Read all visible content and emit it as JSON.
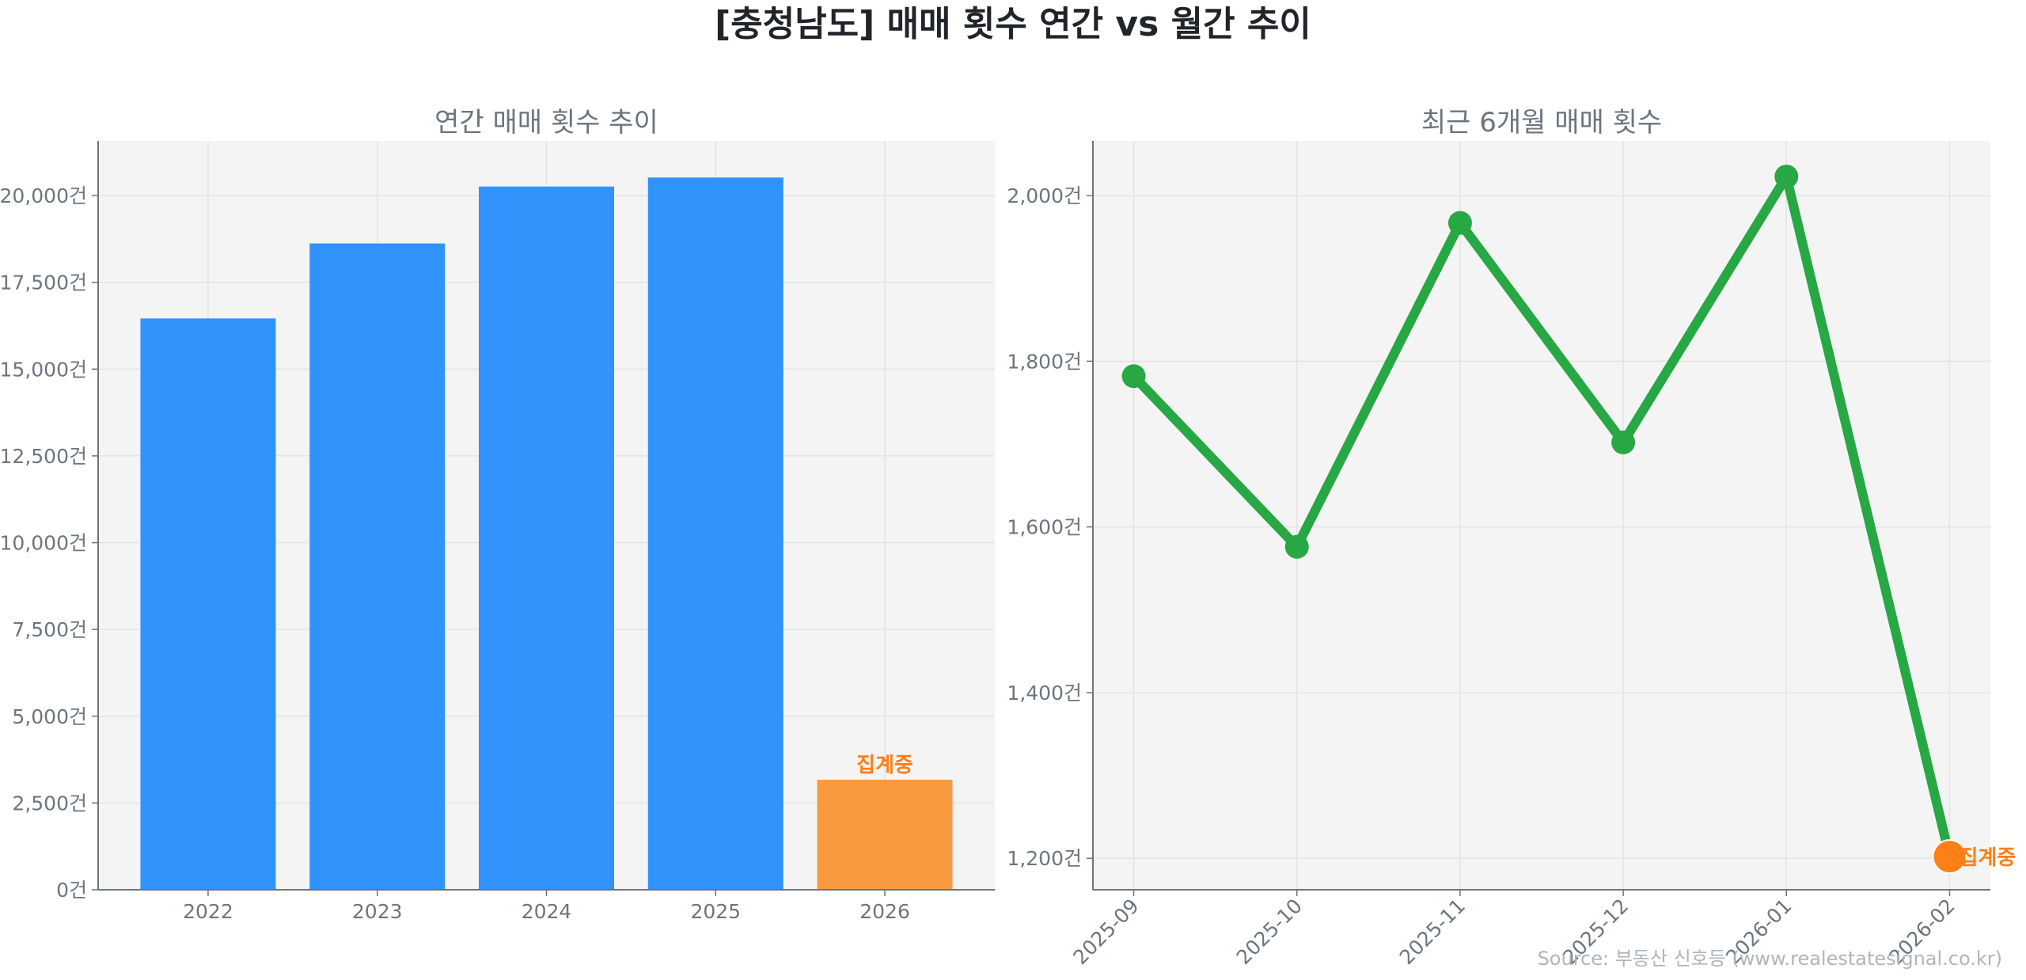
{
  "title": "[충청남도] 매매 횟수 연간 vs 월간 추이",
  "source": "Source: 부동산 신호등 (www.realestatesignal.co.kr)",
  "colors": {
    "bar": "#3093fb",
    "bar_partial": "#f99a40",
    "line": "#28a745",
    "partial_marker": "#fd7f17",
    "annotation": "#fd7f17",
    "axes_bg": "#f4f4f4",
    "text": "#6c757d"
  },
  "chart_data": [
    {
      "type": "bar",
      "title": "연간 매매 횟수 추이",
      "categories": [
        "2022",
        "2023",
        "2024",
        "2025",
        "2026"
      ],
      "values": [
        16460,
        18620,
        20260,
        20520,
        3170
      ],
      "partial_index": 4,
      "annotation": "집계중",
      "ylim": [
        0,
        21575
      ],
      "yticks": [
        0,
        2500,
        5000,
        7500,
        10000,
        12500,
        15000,
        17500,
        20000
      ],
      "ytick_labels": [
        "0건",
        "2,500건",
        "5,000건",
        "7,500건",
        "10,000건",
        "12,500건",
        "15,000건",
        "17,500건",
        "20,000건"
      ],
      "grid": true
    },
    {
      "type": "line",
      "title": "최근 6개월 매매 횟수",
      "categories": [
        "2025-09",
        "2025-10",
        "2025-11",
        "2025-12",
        "2026-01",
        "2026-02"
      ],
      "values": [
        1782,
        1576,
        1967,
        1702,
        2023,
        1202
      ],
      "partial_index": 5,
      "annotation": "집계중",
      "ylim": [
        1162,
        2066
      ],
      "yticks": [
        1200,
        1400,
        1600,
        1800,
        2000
      ],
      "ytick_labels": [
        "1,200건",
        "1,400건",
        "1,600건",
        "1,800건",
        "2,000건"
      ],
      "grid": true
    }
  ]
}
